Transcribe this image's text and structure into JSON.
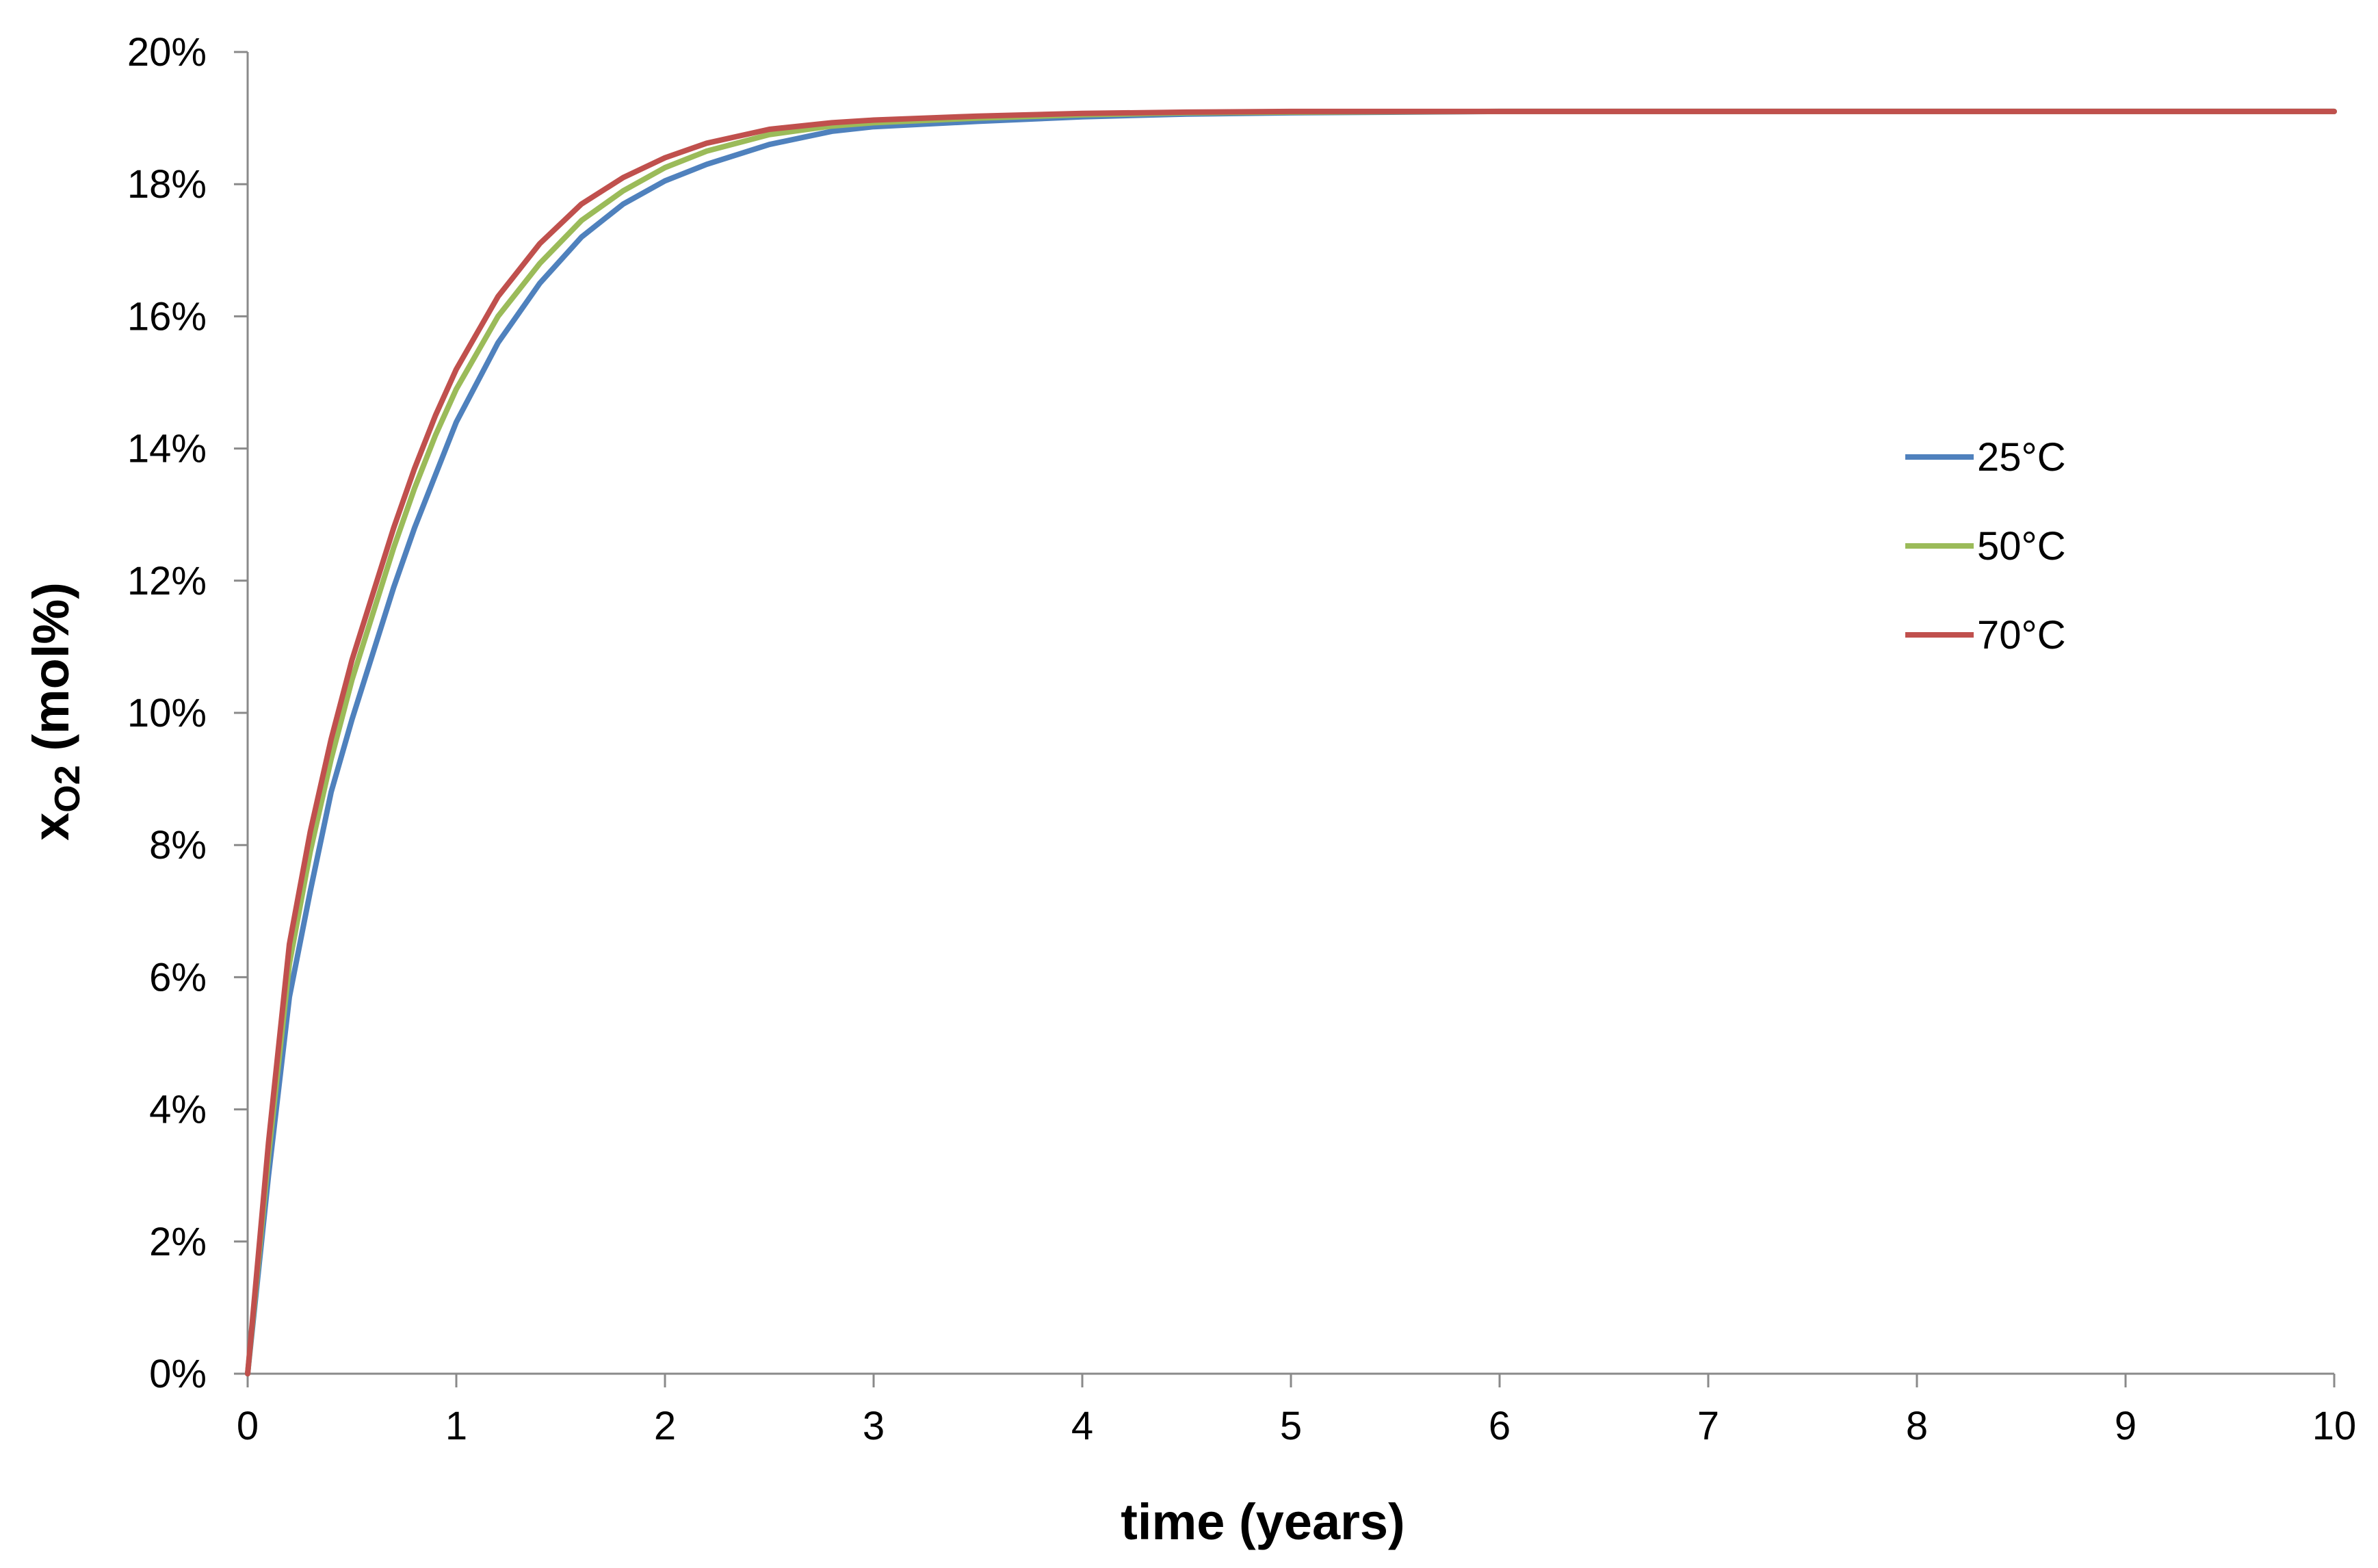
{
  "chart_data": {
    "type": "line",
    "title": "",
    "xlabel": "time (years)",
    "ylabel": {
      "main": "x",
      "subscript": "O2",
      "suffix": " (mol%)"
    },
    "xlim": [
      0,
      10
    ],
    "ylim": [
      0,
      20
    ],
    "x_ticks": [
      0,
      1,
      2,
      3,
      4,
      5,
      6,
      7,
      8,
      9,
      10
    ],
    "x_tick_labels": [
      "0",
      "1",
      "2",
      "3",
      "4",
      "5",
      "6",
      "7",
      "8",
      "9",
      "10"
    ],
    "y_ticks": [
      0,
      2,
      4,
      6,
      8,
      10,
      12,
      14,
      16,
      18,
      20
    ],
    "y_tick_labels": [
      "0%",
      "2%",
      "4%",
      "6%",
      "8%",
      "10%",
      "12%",
      "14%",
      "16%",
      "18%",
      "20%"
    ],
    "grid": false,
    "legend_position": "right",
    "x": [
      0,
      0.1,
      0.2,
      0.3,
      0.4,
      0.5,
      0.6,
      0.7,
      0.8,
      0.9,
      1.0,
      1.2,
      1.4,
      1.6,
      1.8,
      2.0,
      2.2,
      2.5,
      2.8,
      3.0,
      3.5,
      4.0,
      4.5,
      5.0,
      6.0,
      7.0,
      8.0,
      9.0,
      10.0
    ],
    "series": [
      {
        "name": "25°C",
        "color": "#4F81BD",
        "values": [
          0,
          3.0,
          5.7,
          7.3,
          8.8,
          9.9,
          10.9,
          11.9,
          12.8,
          13.6,
          14.4,
          15.6,
          16.5,
          17.2,
          17.7,
          18.05,
          18.3,
          18.6,
          18.8,
          18.87,
          18.95,
          19.02,
          19.06,
          19.08,
          19.1,
          19.1,
          19.1,
          19.1,
          19.1
        ]
      },
      {
        "name": "50°C",
        "color": "#9BBB59",
        "values": [
          0,
          3.3,
          6.2,
          7.9,
          9.3,
          10.5,
          11.5,
          12.5,
          13.4,
          14.2,
          14.9,
          16.0,
          16.8,
          17.45,
          17.9,
          18.25,
          18.5,
          18.75,
          18.88,
          18.93,
          19.0,
          19.05,
          19.08,
          19.09,
          19.1,
          19.1,
          19.1,
          19.1,
          19.1
        ]
      },
      {
        "name": "70°C",
        "color": "#C0504D",
        "values": [
          0,
          3.5,
          6.5,
          8.2,
          9.6,
          10.8,
          11.8,
          12.8,
          13.7,
          14.5,
          15.2,
          16.3,
          17.1,
          17.7,
          18.1,
          18.4,
          18.62,
          18.83,
          18.93,
          18.97,
          19.03,
          19.07,
          19.09,
          19.1,
          19.1,
          19.1,
          19.1,
          19.1,
          19.1
        ]
      }
    ]
  }
}
